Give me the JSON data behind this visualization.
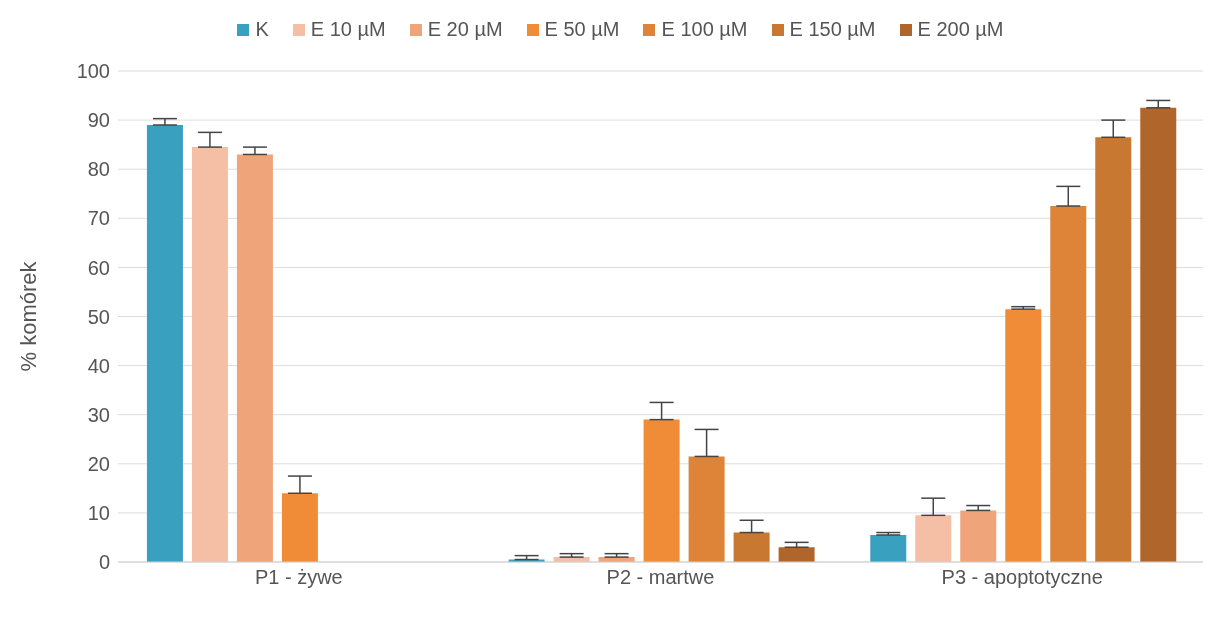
{
  "chart_data": {
    "type": "bar",
    "ylabel": "% komórek",
    "categories": [
      "P1 - żywe",
      "P2 - martwe",
      "P3 - apoptotyczne"
    ],
    "series": [
      {
        "name": "K",
        "color": "#3aa0c0",
        "values": [
          89,
          0.5,
          5.5
        ],
        "errors": [
          1.3,
          0.8,
          0.5
        ]
      },
      {
        "name": "E 10 µM",
        "color": "#f5bfa5",
        "values": [
          84.5,
          1,
          9.5
        ],
        "errors": [
          3,
          0.7,
          3.5
        ]
      },
      {
        "name": "E 20 µM",
        "color": "#f0a47a",
        "values": [
          83,
          1,
          10.5
        ],
        "errors": [
          1.5,
          0.7,
          1
        ]
      },
      {
        "name": "E 50 µM",
        "color": "#f08c38",
        "values": [
          14,
          29,
          51.5
        ],
        "errors": [
          3.5,
          3.5,
          0.5
        ]
      },
      {
        "name": "E 100 µM",
        "color": "#dd8438",
        "values": [
          null,
          21.5,
          72.5
        ],
        "errors": [
          null,
          5.5,
          4
        ]
      },
      {
        "name": "E 150 µM",
        "color": "#c87830",
        "values": [
          null,
          6,
          86.5
        ],
        "errors": [
          null,
          2.5,
          3.5
        ]
      },
      {
        "name": "E 200 µM",
        "color": "#b0652a",
        "values": [
          null,
          3,
          92.5
        ],
        "errors": [
          null,
          1,
          1.5
        ]
      }
    ],
    "ylim": [
      0,
      100
    ],
    "yticks": [
      0,
      10,
      20,
      30,
      40,
      50,
      60,
      70,
      80,
      90,
      100
    ],
    "grid": "y",
    "legend": "top"
  }
}
